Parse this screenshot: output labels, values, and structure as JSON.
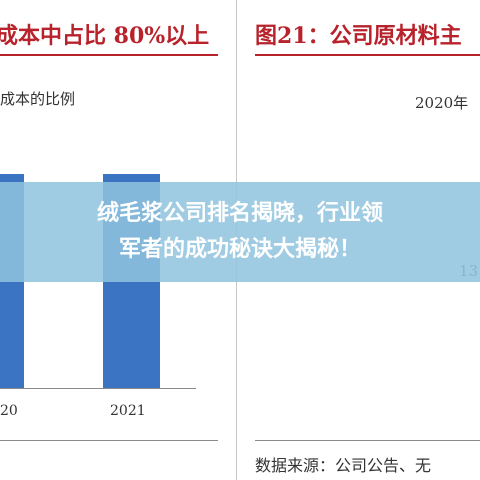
{
  "left_panel": {
    "title": "成本中占比 80%以上",
    "note": "成本的比例",
    "tick_labels": [
      "20",
      "2021"
    ],
    "bar_color": "#3b74c2"
  },
  "right_panel": {
    "title": "图21：公司原材料主",
    "year_label": "2020年",
    "slice_label": "13",
    "source": "数据来源：公司公告、无",
    "pie_colors": [
      "#3b74c2",
      "#f5b53b",
      "#a9a9a9"
    ]
  },
  "banner": {
    "line1": "绒毛浆公司排名揭晓，行业领",
    "line2": "军者的成功秘诀大揭秘！",
    "background": "#8fc4de"
  }
}
